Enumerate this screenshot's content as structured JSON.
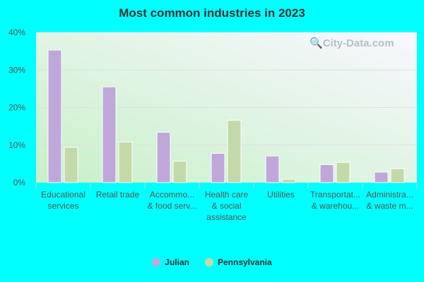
{
  "chart_data": {
    "type": "bar",
    "title": "Most common industries in 2023",
    "categories": [
      [
        "Educational",
        "services"
      ],
      [
        "Retail trade"
      ],
      [
        "Accommo...",
        "& food serv..."
      ],
      [
        "Health care",
        "& social",
        "assistance"
      ],
      [
        "Utilities"
      ],
      [
        "Transportat...",
        "& warehou..."
      ],
      [
        "Administra...",
        "& waste m..."
      ]
    ],
    "series": [
      {
        "name": "Julian",
        "color": "#bfa8d9",
        "values": [
          35.3,
          25.5,
          13.4,
          7.8,
          7.1,
          4.8,
          2.8
        ]
      },
      {
        "name": "Pennsylvania",
        "color": "#c4d9a8",
        "values": [
          9.4,
          10.8,
          5.7,
          16.6,
          0.9,
          5.4,
          3.7
        ]
      }
    ],
    "yticks": [
      "0%",
      "10%",
      "20%",
      "30%",
      "40%"
    ],
    "ylim": [
      0,
      40
    ],
    "grid": true,
    "legend": "bottom"
  },
  "watermark": "City-Data.com"
}
